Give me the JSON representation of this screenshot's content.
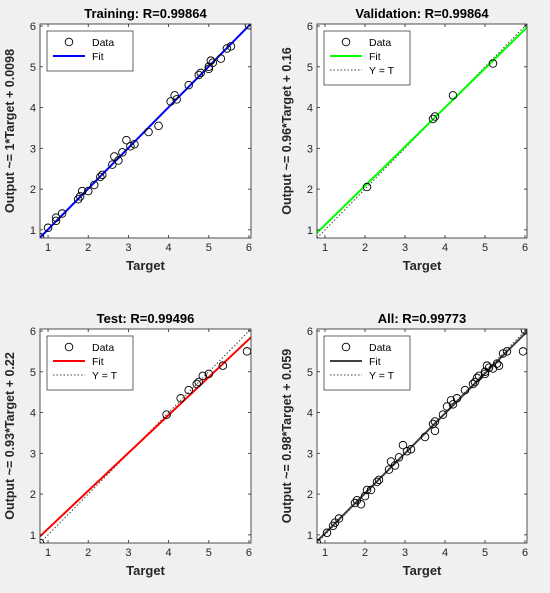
{
  "chart_data": [
    {
      "type": "scatter",
      "title": "Training: R=0.99864",
      "xlabel": "Target",
      "ylabel": "Output ~= 1*Target + 0.0098",
      "xlim": [
        0.8,
        6.05
      ],
      "ylim": [
        0.8,
        6.05
      ],
      "xticks": [
        1,
        2,
        3,
        4,
        5,
        6
      ],
      "yticks": [
        1,
        2,
        3,
        4,
        5,
        6
      ],
      "legend": [
        "Data",
        "Fit"
      ],
      "legend_position": "top-left",
      "fit_color": "#0000ff",
      "fit": {
        "slope": 1.0,
        "intercept": 0.0098
      },
      "show_identity": false,
      "points": [
        [
          0.8,
          0.82
        ],
        [
          1.0,
          1.05
        ],
        [
          1.2,
          1.22
        ],
        [
          1.2,
          1.3
        ],
        [
          1.35,
          1.4
        ],
        [
          1.75,
          1.75
        ],
        [
          1.8,
          1.82
        ],
        [
          1.85,
          1.95
        ],
        [
          2.0,
          1.95
        ],
        [
          2.15,
          2.1
        ],
        [
          2.3,
          2.3
        ],
        [
          2.35,
          2.35
        ],
        [
          2.6,
          2.6
        ],
        [
          2.65,
          2.8
        ],
        [
          2.75,
          2.7
        ],
        [
          2.85,
          2.9
        ],
        [
          2.95,
          3.2
        ],
        [
          3.05,
          3.05
        ],
        [
          3.15,
          3.1
        ],
        [
          3.5,
          3.4
        ],
        [
          3.75,
          3.55
        ],
        [
          4.05,
          4.15
        ],
        [
          4.15,
          4.3
        ],
        [
          4.2,
          4.2
        ],
        [
          4.5,
          4.55
        ],
        [
          4.75,
          4.8
        ],
        [
          4.8,
          4.85
        ],
        [
          5.0,
          5.0
        ],
        [
          5.0,
          4.95
        ],
        [
          5.05,
          5.15
        ],
        [
          5.1,
          5.1
        ],
        [
          5.3,
          5.2
        ],
        [
          5.45,
          5.45
        ],
        [
          5.55,
          5.5
        ],
        [
          6.0,
          6.02
        ]
      ]
    },
    {
      "type": "scatter",
      "title": "Validation: R=0.99864",
      "xlabel": "Target",
      "ylabel": "Output ~= 0.96*Target + 0.16",
      "xlim": [
        0.8,
        6.05
      ],
      "ylim": [
        0.8,
        6.05
      ],
      "xticks": [
        1,
        2,
        3,
        4,
        5,
        6
      ],
      "yticks": [
        1,
        2,
        3,
        4,
        5,
        6
      ],
      "legend": [
        "Data",
        "Fit",
        "Y = T"
      ],
      "legend_position": "top-left",
      "fit_color": "#00ff00",
      "fit": {
        "slope": 0.96,
        "intercept": 0.16
      },
      "show_identity": true,
      "points": [
        [
          2.05,
          2.05
        ],
        [
          3.7,
          3.72
        ],
        [
          3.75,
          3.78
        ],
        [
          4.2,
          4.3
        ],
        [
          5.2,
          5.08
        ]
      ]
    },
    {
      "type": "scatter",
      "title": "Test: R=0.99496",
      "xlabel": "Target",
      "ylabel": "Output ~= 0.93*Target + 0.22",
      "xlim": [
        0.8,
        6.05
      ],
      "ylim": [
        0.8,
        6.05
      ],
      "xticks": [
        1,
        2,
        3,
        4,
        5,
        6
      ],
      "yticks": [
        1,
        2,
        3,
        4,
        5,
        6
      ],
      "legend": [
        "Data",
        "Fit",
        "Y = T"
      ],
      "legend_position": "top-left",
      "fit_color": "#ff0000",
      "fit": {
        "slope": 0.93,
        "intercept": 0.22
      },
      "show_identity": true,
      "points": [
        [
          0.8,
          0.8
        ],
        [
          3.95,
          3.95
        ],
        [
          4.3,
          4.35
        ],
        [
          4.5,
          4.55
        ],
        [
          4.7,
          4.7
        ],
        [
          4.75,
          4.75
        ],
        [
          4.85,
          4.9
        ],
        [
          5.0,
          4.95
        ],
        [
          5.35,
          5.15
        ],
        [
          5.95,
          5.5
        ]
      ]
    },
    {
      "type": "scatter",
      "title": "All: R=0.99773",
      "xlabel": "Target",
      "ylabel": "Output ~= 0.98*Target + 0.059",
      "xlim": [
        0.8,
        6.05
      ],
      "ylim": [
        0.8,
        6.05
      ],
      "xticks": [
        1,
        2,
        3,
        4,
        5,
        6
      ],
      "yticks": [
        1,
        2,
        3,
        4,
        5,
        6
      ],
      "legend": [
        "Data",
        "Fit",
        "Y = T"
      ],
      "legend_position": "top-left",
      "fit_color": "#404040",
      "fit": {
        "slope": 0.98,
        "intercept": 0.059
      },
      "show_identity": true,
      "points": [
        [
          0.8,
          0.8
        ],
        [
          1.05,
          1.05
        ],
        [
          1.2,
          1.22
        ],
        [
          1.25,
          1.3
        ],
        [
          1.35,
          1.4
        ],
        [
          1.75,
          1.78
        ],
        [
          1.8,
          1.85
        ],
        [
          1.9,
          1.75
        ],
        [
          2.0,
          1.95
        ],
        [
          2.05,
          2.1
        ],
        [
          2.15,
          2.1
        ],
        [
          2.3,
          2.3
        ],
        [
          2.35,
          2.35
        ],
        [
          2.6,
          2.6
        ],
        [
          2.65,
          2.8
        ],
        [
          2.75,
          2.7
        ],
        [
          2.85,
          2.9
        ],
        [
          2.95,
          3.2
        ],
        [
          3.05,
          3.05
        ],
        [
          3.15,
          3.1
        ],
        [
          3.5,
          3.4
        ],
        [
          3.7,
          3.72
        ],
        [
          3.75,
          3.78
        ],
        [
          3.75,
          3.55
        ],
        [
          3.95,
          3.95
        ],
        [
          4.05,
          4.15
        ],
        [
          4.15,
          4.3
        ],
        [
          4.2,
          4.2
        ],
        [
          4.3,
          4.35
        ],
        [
          4.5,
          4.55
        ],
        [
          4.7,
          4.7
        ],
        [
          4.75,
          4.75
        ],
        [
          4.8,
          4.85
        ],
        [
          4.85,
          4.9
        ],
        [
          5.0,
          5.0
        ],
        [
          5.0,
          4.95
        ],
        [
          5.05,
          5.15
        ],
        [
          5.1,
          5.1
        ],
        [
          5.2,
          5.08
        ],
        [
          5.3,
          5.2
        ],
        [
          5.35,
          5.15
        ],
        [
          5.45,
          5.45
        ],
        [
          5.55,
          5.5
        ],
        [
          5.95,
          5.5
        ],
        [
          6.0,
          6.02
        ]
      ]
    }
  ]
}
